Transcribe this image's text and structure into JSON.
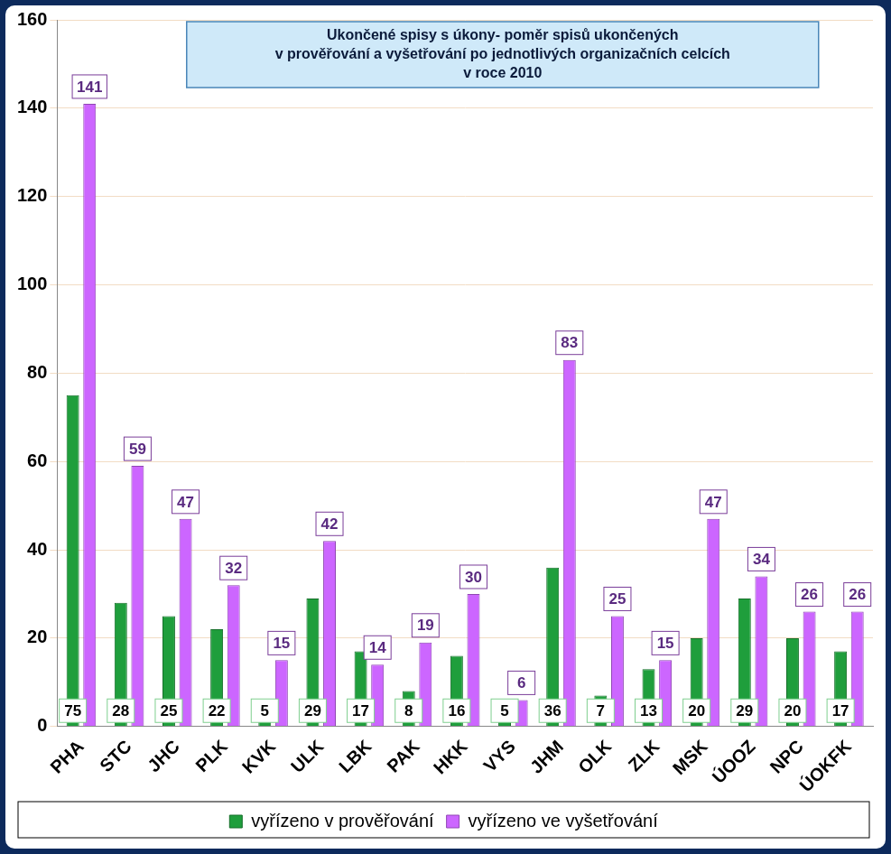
{
  "chart_data": {
    "type": "bar",
    "title": [
      "Ukončené spisy s úkony- poměr spisů ukončených",
      "v prověřování a vyšetřování po jednotlivých organizačních celcích",
      "v roce 2010"
    ],
    "categories": [
      "PHA",
      "STC",
      "JHC",
      "PLK",
      "KVK",
      "ULK",
      "LBK",
      "PAK",
      "HKK",
      "VYS",
      "JHM",
      "OLK",
      "ZLK",
      "MSK",
      "ÚOOZ",
      "NPC",
      "ÚOKFK"
    ],
    "series": [
      {
        "name": "vyřízeno v prověřování",
        "color": "#1f9e3c",
        "values": [
          75,
          28,
          25,
          22,
          5,
          29,
          17,
          8,
          16,
          5,
          36,
          7,
          13,
          20,
          29,
          20,
          17
        ]
      },
      {
        "name": "vyřízeno ve vyšetřování",
        "color": "#cc66ff",
        "values": [
          141,
          59,
          47,
          32,
          15,
          42,
          14,
          19,
          30,
          6,
          83,
          25,
          15,
          47,
          34,
          26,
          26
        ]
      }
    ],
    "ylim": [
      0,
      160
    ],
    "yticks": [
      0,
      20,
      40,
      60,
      80,
      100,
      120,
      140,
      160
    ],
    "grid": true,
    "legend": "bottom",
    "data_labels": true
  }
}
